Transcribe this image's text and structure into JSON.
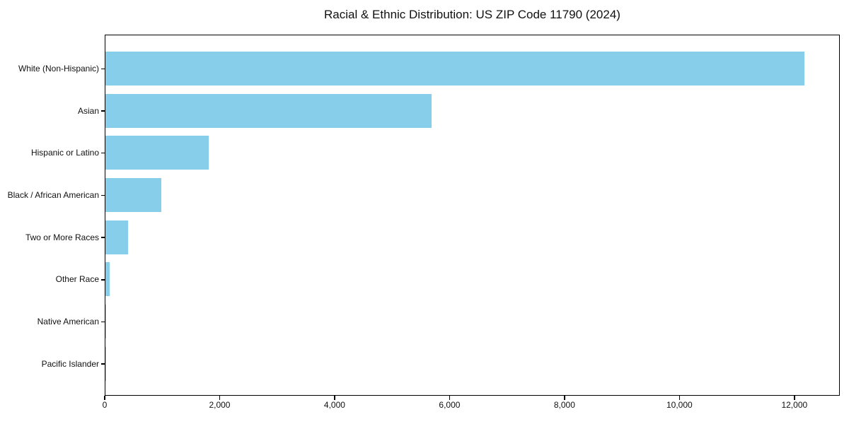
{
  "chart_data": {
    "type": "bar",
    "orientation": "horizontal",
    "title": "Racial & Ethnic Distribution: US ZIP Code 11790 (2024)",
    "categories": [
      "White (Non-Hispanic)",
      "Asian",
      "Hispanic or Latino",
      "Black / African American",
      "Two or More Races",
      "Other Race",
      "Native American",
      "Pacific Islander"
    ],
    "values": [
      12180,
      5690,
      1800,
      970,
      400,
      70,
      10,
      5
    ],
    "xlabel": "",
    "ylabel": "",
    "xlim": [
      0,
      12790
    ],
    "xticks": [
      0,
      2000,
      4000,
      6000,
      8000,
      10000,
      12000
    ],
    "xtick_labels": [
      "0",
      "2,000",
      "4,000",
      "6,000",
      "8,000",
      "10,000",
      "12,000"
    ],
    "bar_color": "#87CEEB",
    "spine_color": "#000000",
    "background_color": "#ffffff",
    "grid": false,
    "legend": null
  }
}
